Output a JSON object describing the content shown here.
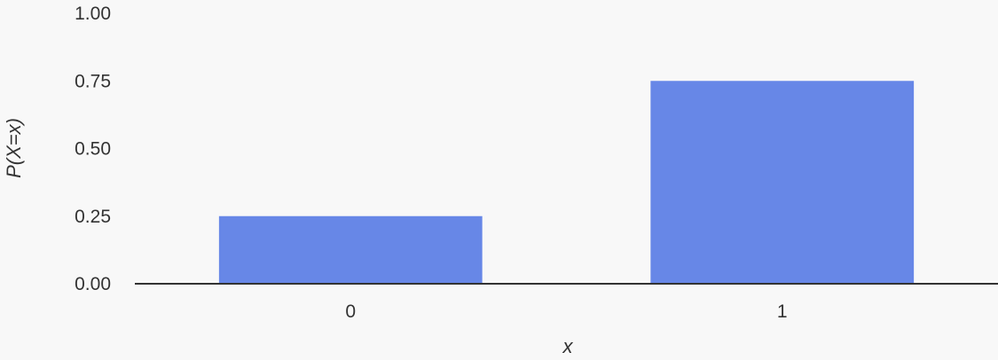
{
  "chart_data": {
    "type": "bar",
    "categories": [
      "0",
      "1"
    ],
    "values": [
      0.25,
      0.75
    ],
    "xlabel": "x",
    "ylabel": "P(X=x)",
    "ylim": [
      0,
      1
    ],
    "yticks": [
      "0.00",
      "0.25",
      "0.50",
      "0.75",
      "1.00"
    ],
    "grid": false,
    "bar_color": "#6787e7",
    "axis_color": "#333333",
    "background": "#f8f8f8"
  }
}
